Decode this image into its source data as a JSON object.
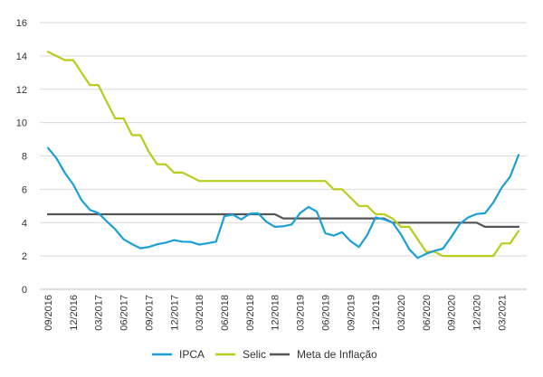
{
  "chart_data": {
    "type": "line",
    "title": "",
    "xlabel": "",
    "ylabel": "",
    "ylim": [
      0,
      16
    ],
    "yticks": [
      0,
      2,
      4,
      6,
      8,
      10,
      12,
      14,
      16
    ],
    "grid": "horizontal",
    "legend_position": "bottom",
    "x_tick_labels": [
      "09/2016",
      "12/2016",
      "03/2017",
      "06/2017",
      "09/2017",
      "12/2017",
      "03/2018",
      "06/2018",
      "09/2018",
      "12/2018",
      "03/2019",
      "06/2019",
      "09/2019",
      "12/2019",
      "03/2020",
      "06/2020",
      "09/2020",
      "12/2020",
      "03/2021"
    ],
    "x_tick_index": [
      0,
      3,
      6,
      9,
      12,
      15,
      18,
      21,
      24,
      27,
      30,
      33,
      36,
      39,
      42,
      45,
      48,
      51,
      54
    ],
    "x_count": 57,
    "series": [
      {
        "name": "IPCA",
        "color": "#1a9fd6",
        "values": [
          8.48,
          7.87,
          6.99,
          6.29,
          5.35,
          4.76,
          4.57,
          4.08,
          3.6,
          3.0,
          2.71,
          2.46,
          2.54,
          2.7,
          2.8,
          2.95,
          2.86,
          2.84,
          2.68,
          2.76,
          2.86,
          4.39,
          4.48,
          4.19,
          4.53,
          4.56,
          4.05,
          3.75,
          3.78,
          3.89,
          4.58,
          4.94,
          4.66,
          3.37,
          3.22,
          3.43,
          2.89,
          2.54,
          3.27,
          4.31,
          4.19,
          4.01,
          3.3,
          2.4,
          1.88,
          2.13,
          2.31,
          2.44,
          3.14,
          3.92,
          4.31,
          4.52,
          4.56,
          5.2,
          6.1,
          6.76,
          8.06
        ]
      },
      {
        "name": "Selic",
        "color": "#b8cc1a",
        "values": [
          14.25,
          14.0,
          13.75,
          13.75,
          13.0,
          12.25,
          12.25,
          11.25,
          10.25,
          10.25,
          9.25,
          9.25,
          8.25,
          7.5,
          7.5,
          7.0,
          7.0,
          6.75,
          6.5,
          6.5,
          6.5,
          6.5,
          6.5,
          6.5,
          6.5,
          6.5,
          6.5,
          6.5,
          6.5,
          6.5,
          6.5,
          6.5,
          6.5,
          6.5,
          6.0,
          6.0,
          5.5,
          5.0,
          5.0,
          4.5,
          4.5,
          4.25,
          3.75,
          3.75,
          3.0,
          2.25,
          2.25,
          2.0,
          2.0,
          2.0,
          2.0,
          2.0,
          2.0,
          2.0,
          2.75,
          2.75,
          3.5
        ]
      },
      {
        "name": "Meta de Inflação",
        "color": "#555555",
        "values": [
          4.5,
          4.5,
          4.5,
          4.5,
          4.5,
          4.5,
          4.5,
          4.5,
          4.5,
          4.5,
          4.5,
          4.5,
          4.5,
          4.5,
          4.5,
          4.5,
          4.5,
          4.5,
          4.5,
          4.5,
          4.5,
          4.5,
          4.5,
          4.5,
          4.5,
          4.5,
          4.5,
          4.5,
          4.25,
          4.25,
          4.25,
          4.25,
          4.25,
          4.25,
          4.25,
          4.25,
          4.25,
          4.25,
          4.25,
          4.25,
          4.25,
          4.0,
          4.0,
          4.0,
          4.0,
          4.0,
          4.0,
          4.0,
          4.0,
          4.0,
          4.0,
          4.0,
          3.75,
          3.75,
          3.75,
          3.75,
          3.75
        ]
      }
    ]
  }
}
